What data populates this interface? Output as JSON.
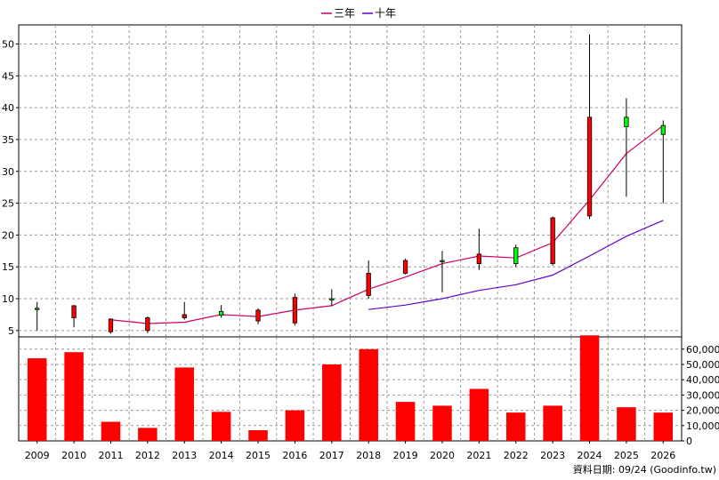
{
  "chart_data": [
    {
      "type": "candlestick",
      "panel": "price",
      "categories": [
        "2009",
        "2010",
        "2011",
        "2012",
        "2013",
        "2014",
        "2015",
        "2016",
        "2017",
        "2018",
        "2019",
        "2020",
        "2021",
        "2022",
        "2023",
        "2024",
        "2025",
        "2026"
      ],
      "candles": [
        {
          "open": 8.5,
          "close": 8.3,
          "high": 9.5,
          "low": 5.0
        },
        {
          "open": 7.0,
          "close": 8.9,
          "high": 9.0,
          "low": 5.5
        },
        {
          "open": 4.8,
          "close": 6.8,
          "high": 6.9,
          "low": 4.5
        },
        {
          "open": 5.0,
          "close": 7.0,
          "high": 7.2,
          "low": 4.6
        },
        {
          "open": 7.0,
          "close": 7.5,
          "high": 9.5,
          "low": 6.7
        },
        {
          "open": 8.0,
          "close": 7.4,
          "high": 9.0,
          "low": 7.0
        },
        {
          "open": 6.5,
          "close": 8.2,
          "high": 8.5,
          "low": 6.0
        },
        {
          "open": 6.2,
          "close": 10.2,
          "high": 10.8,
          "low": 5.8
        },
        {
          "open": 10.0,
          "close": 9.8,
          "high": 11.5,
          "low": 8.8
        },
        {
          "open": 10.5,
          "close": 14.0,
          "high": 16.0,
          "low": 10.0
        },
        {
          "open": 14.0,
          "close": 16.0,
          "high": 16.3,
          "low": 13.8
        },
        {
          "open": 16.0,
          "close": 15.8,
          "high": 17.5,
          "low": 11.0
        },
        {
          "open": 15.5,
          "close": 17.0,
          "high": 21.0,
          "low": 14.5
        },
        {
          "open": 18.0,
          "close": 15.5,
          "high": 18.5,
          "low": 15.0
        },
        {
          "open": 15.5,
          "close": 22.7,
          "high": 22.9,
          "low": 15.2
        },
        {
          "open": 23.0,
          "close": 38.5,
          "high": 51.5,
          "low": 22.5
        },
        {
          "open": 38.5,
          "close": 37.0,
          "high": 41.5,
          "low": 26.0
        },
        {
          "open": 37.2,
          "close": 35.8,
          "high": 38.0,
          "low": 25.0
        }
      ],
      "up_color": "#ff0000",
      "down_color": "#00ff00",
      "series": [
        {
          "name": "三年",
          "color": "#cc0066",
          "values": [
            null,
            null,
            6.7,
            6.1,
            6.3,
            7.5,
            7.2,
            8.2,
            8.9,
            11.5,
            13.4,
            15.5,
            16.7,
            16.4,
            18.8,
            25.5,
            32.8,
            37.2
          ]
        },
        {
          "name": "十年",
          "color": "#6600cc",
          "values": [
            null,
            null,
            null,
            null,
            null,
            null,
            null,
            null,
            null,
            8.3,
            9.0,
            10.0,
            11.3,
            12.2,
            13.7,
            16.7,
            19.8,
            22.3
          ]
        }
      ],
      "yticks": [
        5,
        10,
        15,
        20,
        25,
        30,
        35,
        40,
        45,
        50
      ],
      "ylim": [
        4,
        53
      ],
      "legend_position": "top-center",
      "grid": true
    },
    {
      "type": "bar",
      "panel": "volume",
      "categories": [
        "2009",
        "2010",
        "2011",
        "2012",
        "2013",
        "2014",
        "2015",
        "2016",
        "2017",
        "2018",
        "2019",
        "2020",
        "2021",
        "2022",
        "2023",
        "2024",
        "2025",
        "2026"
      ],
      "values": [
        54000,
        58000,
        12500,
        8500,
        48000,
        19000,
        7000,
        20000,
        50000,
        60000,
        25500,
        23000,
        34000,
        18500,
        23000,
        69000,
        22000,
        18500
      ],
      "color": "#ff0000",
      "yticks": [
        0,
        10000,
        20000,
        30000,
        40000,
        50000,
        60000
      ],
      "ytick_labels": [
        "0",
        "10,000",
        "20,000",
        "30,000",
        "40,000",
        "50,000",
        "60,000"
      ],
      "ylim": [
        0,
        68000
      ],
      "grid": true
    }
  ],
  "legend": [
    {
      "label": "三年",
      "color": "#cc0066"
    },
    {
      "label": "十年",
      "color": "#6600cc"
    }
  ],
  "source_note": "資料日期: 09/24 (Goodinfo.tw)"
}
